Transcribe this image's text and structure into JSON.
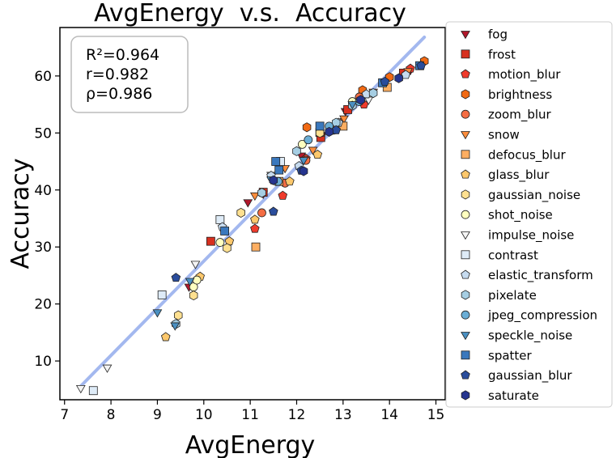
{
  "chart_data": {
    "type": "scatter",
    "title": "AvgEnergy  v.s.  Accuracy",
    "xlabel": "AvgEnergy",
    "ylabel": "Accuracy",
    "xlim": [
      6.9,
      15.2
    ],
    "ylim": [
      3.2,
      68.5
    ],
    "xticks": [
      7,
      8,
      9,
      10,
      11,
      12,
      13,
      14,
      15
    ],
    "yticks": [
      10,
      20,
      30,
      40,
      50,
      60
    ],
    "grid": false,
    "legend_position": "outside-right",
    "stats": [
      "R²=0.964",
      "r=0.982",
      "ρ=0.986"
    ],
    "fit_line": {
      "x": [
        7.35,
        14.75
      ],
      "y": [
        5.6,
        66.8
      ],
      "color": "#a3b8ef"
    },
    "series": [
      {
        "name": "fog",
        "marker": "tri-down",
        "color": "#b2182b",
        "points": [
          [
            9.68,
            23.0
          ],
          [
            10.95,
            37.8
          ],
          [
            11.28,
            39.3
          ],
          [
            12.1,
            46.0
          ],
          [
            12.55,
            49.6
          ],
          [
            13.05,
            53.8
          ],
          [
            14.45,
            61.0
          ]
        ]
      },
      {
        "name": "frost",
        "marker": "square",
        "color": "#d7301f",
        "points": [
          [
            10.15,
            31.0
          ],
          [
            11.28,
            39.6
          ],
          [
            12.52,
            49.2
          ],
          [
            13.1,
            54.1
          ],
          [
            14.3,
            60.5
          ]
        ]
      },
      {
        "name": "motion_blur",
        "marker": "pentagon",
        "color": "#ef3b2c",
        "points": [
          [
            11.1,
            33.2
          ],
          [
            11.7,
            39.0
          ],
          [
            12.2,
            45.5
          ],
          [
            12.8,
            50.8
          ],
          [
            13.45,
            55.0
          ],
          [
            14.45,
            61.3
          ]
        ]
      },
      {
        "name": "brightness",
        "marker": "hexagon",
        "color": "#f16913",
        "points": [
          [
            12.22,
            51.0
          ],
          [
            12.95,
            51.8
          ],
          [
            13.42,
            57.5
          ],
          [
            14.0,
            59.8
          ],
          [
            14.75,
            62.6
          ]
        ]
      },
      {
        "name": "zoom_blur",
        "marker": "circle",
        "color": "#f46d43",
        "points": [
          [
            11.25,
            36.0
          ],
          [
            11.75,
            41.2
          ],
          [
            12.2,
            45.2
          ],
          [
            12.8,
            50.5
          ],
          [
            13.35,
            56.3
          ]
        ]
      },
      {
        "name": "snow",
        "marker": "tri-down",
        "color": "#fd8d3c",
        "points": [
          [
            11.1,
            39.0
          ],
          [
            11.75,
            43.8
          ],
          [
            12.35,
            47.0
          ],
          [
            13.02,
            52.5
          ],
          [
            13.65,
            57.2
          ],
          [
            14.4,
            60.8
          ]
        ]
      },
      {
        "name": "defocus_blur",
        "marker": "square",
        "color": "#fdae61",
        "points": [
          [
            11.12,
            30.0
          ],
          [
            11.62,
            41.5
          ],
          [
            12.5,
            50.1
          ],
          [
            13.0,
            51.2
          ],
          [
            13.95,
            58.0
          ]
        ]
      },
      {
        "name": "glass_blur",
        "marker": "pentagon",
        "color": "#fdc86c",
        "points": [
          [
            9.18,
            14.2
          ],
          [
            9.92,
            24.8
          ],
          [
            10.55,
            31.0
          ],
          [
            11.1,
            34.8
          ],
          [
            11.85,
            41.5
          ],
          [
            12.45,
            46.2
          ]
        ]
      },
      {
        "name": "gaussian_noise",
        "marker": "hexagon",
        "color": "#fee090",
        "points": [
          [
            9.45,
            18.0
          ],
          [
            9.78,
            21.5
          ],
          [
            10.5,
            29.8
          ],
          [
            10.8,
            36.0
          ],
          [
            12.5,
            50.0
          ]
        ]
      },
      {
        "name": "shot_noise",
        "marker": "circle",
        "color": "#ffffbf",
        "points": [
          [
            9.78,
            23.0
          ],
          [
            9.85,
            24.2
          ],
          [
            10.35,
            30.8
          ],
          [
            12.12,
            48.0
          ],
          [
            13.2,
            55.5
          ]
        ]
      },
      {
        "name": "impulse_noise",
        "marker": "tri-down",
        "color": "#f4f4f4",
        "points": [
          [
            7.35,
            5.2
          ],
          [
            7.92,
            8.8
          ],
          [
            9.82,
            27.0
          ],
          [
            11.45,
            42.6
          ],
          [
            13.55,
            55.8
          ]
        ]
      },
      {
        "name": "contrast",
        "marker": "square",
        "color": "#deebf7",
        "points": [
          [
            7.62,
            4.8
          ],
          [
            9.1,
            21.6
          ],
          [
            10.35,
            34.8
          ],
          [
            11.65,
            45.0
          ]
        ]
      },
      {
        "name": "elastic_transform",
        "marker": "pentagon",
        "color": "#c6dbef",
        "points": [
          [
            10.4,
            33.5
          ],
          [
            11.45,
            42.5
          ],
          [
            12.05,
            44.2
          ],
          [
            12.9,
            51.8
          ],
          [
            13.5,
            56.8
          ],
          [
            14.35,
            60.2
          ]
        ]
      },
      {
        "name": "pixelate",
        "marker": "hexagon",
        "color": "#a6cee3",
        "points": [
          [
            9.4,
            16.5
          ],
          [
            11.25,
            39.5
          ],
          [
            12.0,
            46.8
          ],
          [
            12.85,
            51.8
          ],
          [
            13.2,
            54.8
          ],
          [
            13.65,
            57.0
          ]
        ]
      },
      {
        "name": "jpeg_compression",
        "marker": "circle",
        "color": "#6baed6",
        "points": [
          [
            11.6,
            41.5
          ],
          [
            12.25,
            48.8
          ],
          [
            12.7,
            51.2
          ],
          [
            13.35,
            55.5
          ]
        ]
      },
      {
        "name": "speckle_noise",
        "marker": "tri-down",
        "color": "#4a90c2",
        "points": [
          [
            9.0,
            18.5
          ],
          [
            9.38,
            16.2
          ],
          [
            9.7,
            24.0
          ],
          [
            11.45,
            41.8
          ],
          [
            12.15,
            45.2
          ],
          [
            13.2,
            55.0
          ]
        ]
      },
      {
        "name": "spatter",
        "marker": "square",
        "color": "#3a78bd",
        "points": [
          [
            10.45,
            32.8
          ],
          [
            11.55,
            45.0
          ],
          [
            11.62,
            43.5
          ],
          [
            12.5,
            51.2
          ],
          [
            13.85,
            58.8
          ],
          [
            14.65,
            61.8
          ]
        ]
      },
      {
        "name": "gaussian_blur",
        "marker": "pentagon",
        "color": "#2a4d9c",
        "points": [
          [
            9.4,
            24.6
          ],
          [
            11.5,
            36.2
          ],
          [
            12.1,
            43.4
          ],
          [
            12.85,
            50.5
          ],
          [
            13.9,
            59.0
          ],
          [
            14.68,
            61.8
          ]
        ]
      },
      {
        "name": "saturate",
        "marker": "hexagon",
        "color": "#26358f",
        "points": [
          [
            11.5,
            41.7
          ],
          [
            12.15,
            43.3
          ],
          [
            12.7,
            50.2
          ],
          [
            13.38,
            55.8
          ],
          [
            14.2,
            59.6
          ]
        ]
      }
    ]
  }
}
